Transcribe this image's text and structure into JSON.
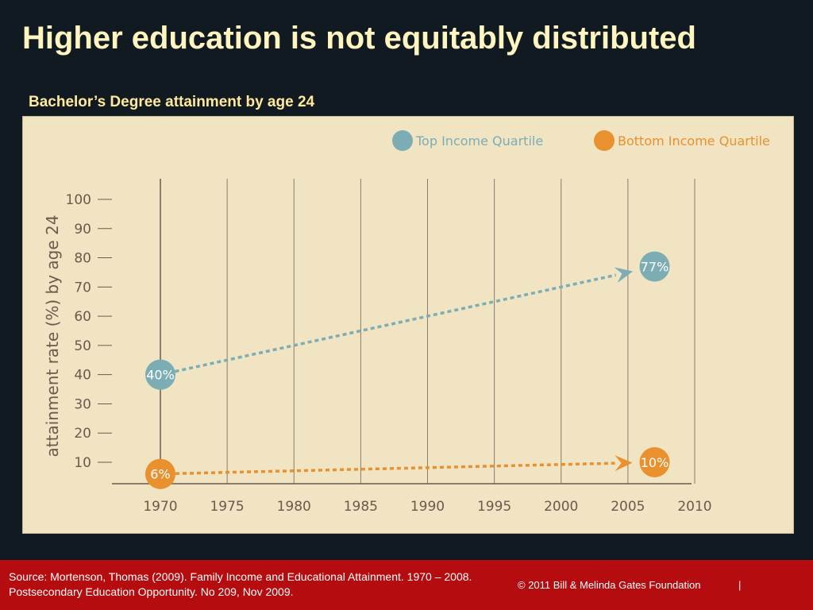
{
  "slide": {
    "title": "Higher education is not equitably distributed"
  },
  "footer": {
    "source": "Source: Mortenson, Thomas (2009). Family Income and Educational Attainment. 1970 – 2008. Postsecondary Education Opportunity. No 209, Nov 2009.",
    "copyright": "© 2011 Bill & Melinda Gates Foundation",
    "separator": "|"
  },
  "colors": {
    "background": "#121a21",
    "title": "#fff5c0",
    "subtitle": "#ffe99a",
    "panel": "#f0e4c3",
    "axis": "#6b5a4e",
    "top_quartile": "#7dadb4",
    "bottom_quartile": "#e8912e",
    "footer": "#b50c0f"
  },
  "chart_data": {
    "type": "line",
    "title": "Bachelor’s Degree attainment by age 24",
    "xlabel": "",
    "ylabel": "attainment rate (%) by age 24",
    "xlim": [
      1965,
      2010
    ],
    "ylim": [
      5,
      100
    ],
    "x_ticks": [
      1970,
      1975,
      1980,
      1985,
      1990,
      1995,
      2000,
      2005,
      2010
    ],
    "y_ticks": [
      10,
      20,
      30,
      40,
      50,
      60,
      70,
      80,
      90,
      100
    ],
    "grid": "vertical",
    "legend_position": "top-right",
    "series": [
      {
        "name": "Top Income Quartile",
        "color": "#7dadb4",
        "style": "dotted-arrow",
        "points": [
          {
            "x": 1970,
            "y": 40,
            "label": "40%"
          },
          {
            "x": 2007,
            "y": 77,
            "label": "77%"
          }
        ]
      },
      {
        "name": "Bottom Income Quartile",
        "color": "#e8912e",
        "style": "dotted-arrow",
        "points": [
          {
            "x": 1970,
            "y": 6,
            "label": "6%"
          },
          {
            "x": 2007,
            "y": 10,
            "label": "10%"
          }
        ]
      }
    ]
  }
}
